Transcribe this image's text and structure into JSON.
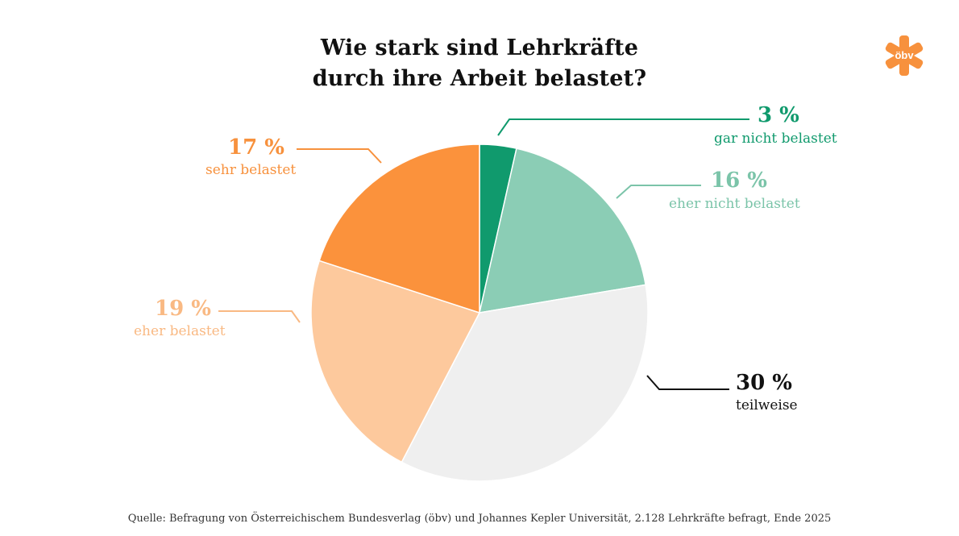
{
  "header": {
    "title_line1": "Wie stark sind Lehrkräfte",
    "title_line2": "durch ihre Arbeit belastet?"
  },
  "logo": {
    "text": "öbv",
    "color": "#f7913d"
  },
  "chart_data": {
    "type": "pie",
    "title": "Wie stark sind Lehrkräfte durch ihre Arbeit belastet?",
    "start_angle": "12 o'clock",
    "direction": "clockwise",
    "slices": [
      {
        "label": "gar nicht belastet",
        "value": 3,
        "display": "3 %",
        "color": "#109a6d",
        "label_color": "#109a6d"
      },
      {
        "label": "eher nicht belastet",
        "value": 16,
        "display": "16 %",
        "color": "#8bcdb5",
        "label_color": "#7bc4a9"
      },
      {
        "label": "teilweise",
        "value": 30,
        "display": "30 %",
        "color": "#efefef",
        "label_color": "#111111"
      },
      {
        "label": "eher belastet",
        "value": 19,
        "display": "19 %",
        "color": "#fdc99d",
        "label_color": "#f9b983"
      },
      {
        "label": "sehr belastet",
        "value": 17,
        "display": "17 %",
        "color": "#fb923c",
        "label_color": "#f7913d"
      }
    ]
  },
  "source": "Quelle: Befragung von Österreichischem Bundesverlag (öbv) und Johannes Kepler Universität, 2.128 Lehrkräfte befragt, Ende 2025"
}
